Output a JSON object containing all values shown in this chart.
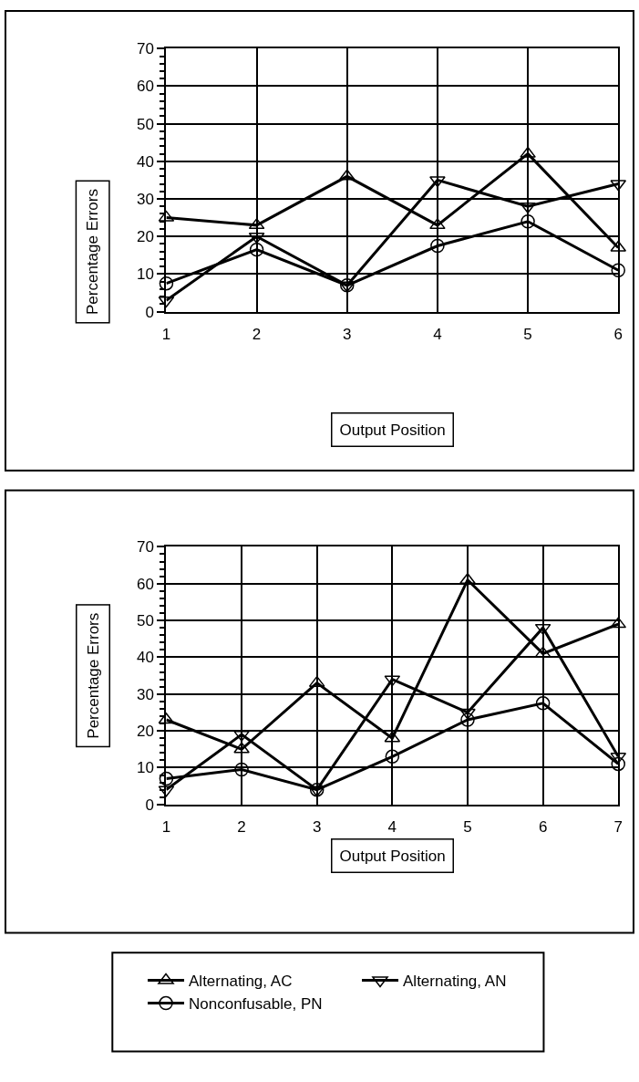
{
  "chart_data": [
    {
      "type": "line",
      "xlabel": "Output Position",
      "ylabel": "Percentage Errors",
      "x": [
        1,
        2,
        3,
        4,
        5,
        6
      ],
      "xlim": [
        1,
        6
      ],
      "xticks": [
        1,
        2,
        3,
        4,
        5,
        6
      ],
      "ylim": [
        0,
        70
      ],
      "yticks": [
        0,
        10,
        20,
        30,
        40,
        50,
        60,
        70
      ],
      "grid": true,
      "legend": "bottom",
      "series": [
        {
          "name": "Alternating, AC",
          "color": "#000000",
          "marker": "triangle",
          "values": [
            25,
            23,
            36,
            23,
            42,
            17
          ]
        },
        {
          "name": "Alternating, AN",
          "color": "#000000",
          "marker": "triangle-down",
          "values": [
            3,
            20,
            7,
            35,
            28,
            34
          ]
        },
        {
          "name": "Nonconfusable, PN",
          "color": "#000000",
          "marker": "circle",
          "values": [
            7.5,
            16.5,
            7,
            17.5,
            24,
            11
          ]
        }
      ]
    },
    {
      "type": "line",
      "xlabel": "Output Position",
      "ylabel": "Percentage Errors",
      "x": [
        1,
        2,
        3,
        4,
        5,
        6,
        7
      ],
      "xlim": [
        1,
        7
      ],
      "xticks": [
        1,
        2,
        3,
        4,
        5,
        6,
        7
      ],
      "ylim": [
        0,
        70
      ],
      "yticks": [
        0,
        10,
        20,
        30,
        40,
        50,
        60,
        70
      ],
      "grid": true,
      "legend": "bottom",
      "series": [
        {
          "name": "Alternating, AC",
          "color": "#000000",
          "marker": "triangle",
          "values": [
            23,
            15,
            33,
            18,
            61,
            41,
            49
          ]
        },
        {
          "name": "Alternating, AN",
          "color": "#000000",
          "marker": "triangle-down",
          "values": [
            4,
            19,
            4,
            34,
            25,
            48,
            13
          ]
        },
        {
          "name": "Nonconfusable, PN",
          "color": "#000000",
          "marker": "circle",
          "values": [
            7,
            9.5,
            4,
            13,
            23,
            27.5,
            11
          ]
        }
      ]
    }
  ]
}
